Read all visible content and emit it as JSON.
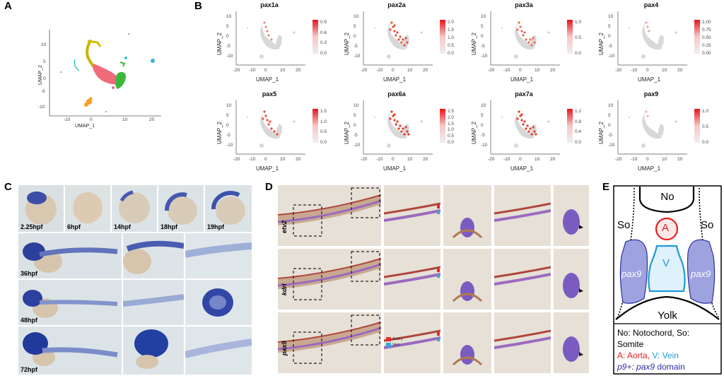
{
  "panels": {
    "a": "A",
    "b": "B",
    "c": "C",
    "d": "D",
    "e": "E"
  },
  "panel_a": {
    "xlabel": "UMAP_1",
    "ylabel": "UMAP_2",
    "xticks": [
      "-10",
      "0",
      "10",
      "20"
    ],
    "yticks": [
      "10",
      "5",
      "0",
      "-5",
      "-10"
    ]
  },
  "umap_axes": {
    "xlabel": "UMAP_1",
    "ylabel": "UMAP_2",
    "xticks": [
      "-20",
      "-10",
      "0",
      "10",
      "20"
    ],
    "yticks": [
      "10",
      "5",
      "0",
      "-5",
      "-10"
    ]
  },
  "genes": [
    {
      "name": "pax1a",
      "scale": [
        "0.9",
        "0.6",
        "0.3",
        "0.0"
      ]
    },
    {
      "name": "pax2a",
      "scale": [
        "2.0",
        "1.5",
        "1.0",
        "0.5",
        "0.0"
      ]
    },
    {
      "name": "pax3a",
      "scale": [
        "1.0",
        "0.5",
        "0.0"
      ]
    },
    {
      "name": "pax4",
      "scale": [
        "1.00",
        "0.75",
        "0.50",
        "0.25",
        "0.00"
      ]
    },
    {
      "name": "pax5",
      "scale": [
        "1.5",
        "1.0",
        "0.5",
        "0.0"
      ]
    },
    {
      "name": "pax6a",
      "scale": [
        "2.5",
        "2.0",
        "1.5",
        "1.0",
        "0.5",
        "0.0"
      ]
    },
    {
      "name": "pax7a",
      "scale": [
        "1.2",
        "0.8",
        "0.4",
        "0.0"
      ]
    },
    {
      "name": "pax9",
      "scale": [
        "1.0",
        "0.5",
        "0.0"
      ]
    }
  ],
  "panel_c": {
    "stages_top": [
      "2.25hpf",
      "6hpf",
      "14hpf",
      "18hpf",
      "19hpf"
    ],
    "stages_rows": [
      "36hpf",
      "48hpf",
      "72hpf"
    ]
  },
  "panel_d": {
    "genes": [
      "etv2",
      "kdrl",
      "pax9"
    ],
    "legend": [
      "Artery",
      "Vein"
    ],
    "colors": {
      "artery": "#e0302a",
      "vein": "#3aa6d8"
    }
  },
  "panel_e": {
    "no": "No",
    "so_left": "So",
    "so_right": "So",
    "a": "A",
    "v": "V",
    "pax9_left": "pax9",
    "pax9_right": "pax9",
    "yolk": "Yolk",
    "legend_line1": "No: Notochord, So:",
    "legend_line2": "Somite",
    "legend_a": "A: Aorta,",
    "legend_v": " V: Vein",
    "legend_p9_prefix": "p9+:",
    "legend_p9_gene": " pax9",
    "legend_p9_suffix": " domain",
    "colors": {
      "aorta": "#e02020",
      "vein": "#1f9ad6",
      "pax9": "#2f2fa0",
      "pax9_fill": "#9fa3dd"
    }
  }
}
